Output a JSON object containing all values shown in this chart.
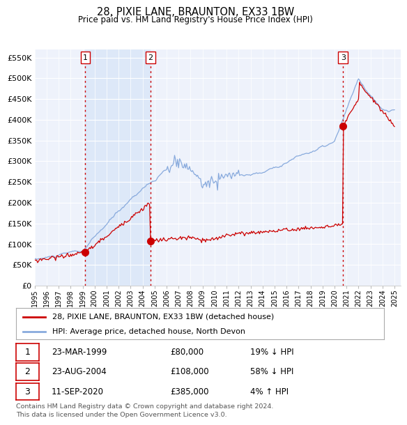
{
  "title": "28, PIXIE LANE, BRAUNTON, EX33 1BW",
  "subtitle": "Price paid vs. HM Land Registry's House Price Index (HPI)",
  "ylabel_ticks": [
    "£0",
    "£50K",
    "£100K",
    "£150K",
    "£200K",
    "£250K",
    "£300K",
    "£350K",
    "£400K",
    "£450K",
    "£500K",
    "£550K"
  ],
  "ytick_values": [
    0,
    50000,
    100000,
    150000,
    200000,
    250000,
    300000,
    350000,
    400000,
    450000,
    500000,
    550000
  ],
  "xmin": 1995.0,
  "xmax": 2025.5,
  "ymin": 0,
  "ymax": 570000,
  "sale_dates": [
    1999.23,
    2004.65,
    2020.71
  ],
  "sale_prices": [
    80000,
    108000,
    385000
  ],
  "sale_labels": [
    "1",
    "2",
    "3"
  ],
  "vline_color": "#cc0000",
  "hpi_color": "#88aadd",
  "price_color": "#cc0000",
  "background_color": "#eef2fb",
  "highlight_color": "#dde8f8",
  "legend_entries": [
    "28, PIXIE LANE, BRAUNTON, EX33 1BW (detached house)",
    "HPI: Average price, detached house, North Devon"
  ],
  "table_data": [
    [
      "1",
      "23-MAR-1999",
      "£80,000",
      "19% ↓ HPI"
    ],
    [
      "2",
      "23-AUG-2004",
      "£108,000",
      "58% ↓ HPI"
    ],
    [
      "3",
      "11-SEP-2020",
      "£385,000",
      "4% ↑ HPI"
    ]
  ],
  "footer": "Contains HM Land Registry data © Crown copyright and database right 2024.\nThis data is licensed under the Open Government Licence v3.0."
}
